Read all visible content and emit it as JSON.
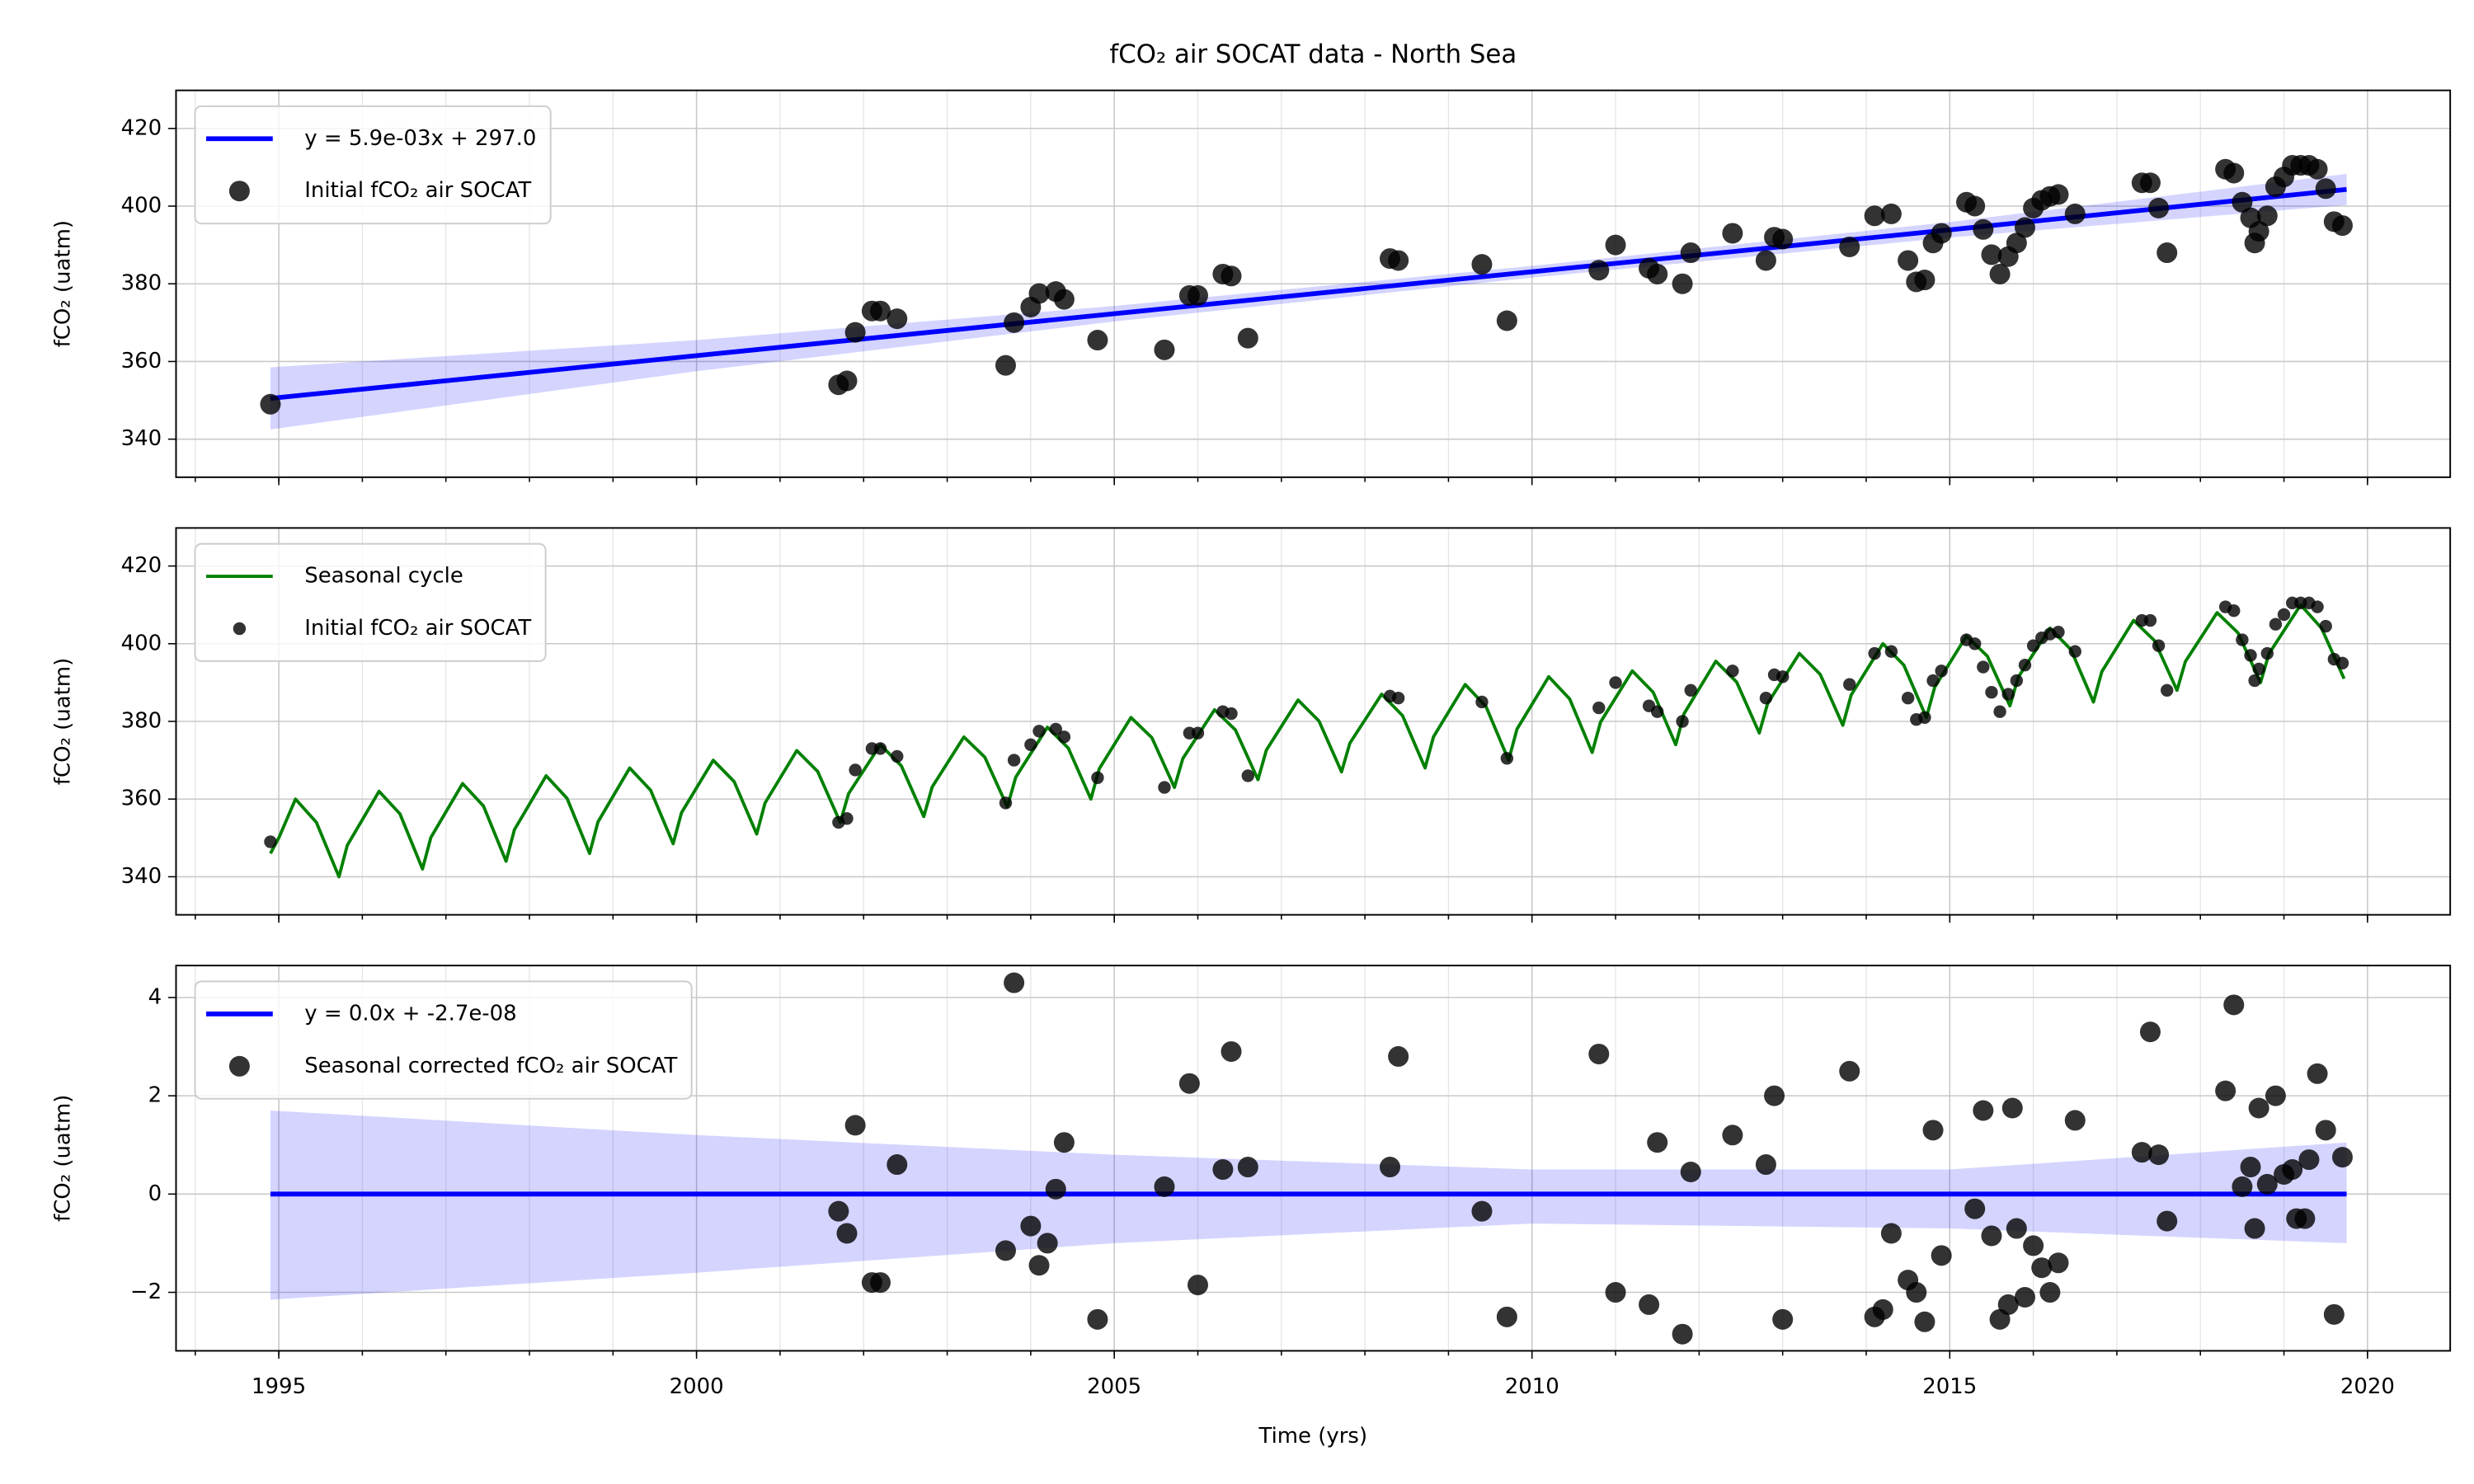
{
  "chart_data": [
    {
      "type": "scatter",
      "title": "fCO₂ air SOCAT data - North Sea",
      "ylabel": "fCO₂ (uatm)",
      "xlim": [
        1993.77,
        2020.99
      ],
      "ylim": [
        330.2,
        429.8
      ],
      "xticks": [
        1995,
        2000,
        2005,
        2010,
        2015,
        2020
      ],
      "xtick_labels": false,
      "xminor": [
        1994,
        1995,
        1996,
        1997,
        1998,
        1999,
        2000,
        2001,
        2002,
        2003,
        2004,
        2005,
        2006,
        2007,
        2008,
        2009,
        2010,
        2011,
        2012,
        2013,
        2014,
        2015,
        2016,
        2017,
        2018,
        2019,
        2020
      ],
      "yticks": [
        340,
        360,
        380,
        400,
        420
      ],
      "grid": true,
      "legend": "upper left",
      "series": [
        {
          "name": "y = 5.9e-03x + 297.0",
          "kind": "line",
          "color": "#0000ff",
          "width": 3,
          "x": [
            1994.9,
            2000,
            2005,
            2010,
            2015,
            2019.75
          ],
          "values": [
            350.5,
            361.5,
            372.3,
            383.1,
            393.9,
            404.3
          ],
          "band_lower": [
            342.5,
            357.5,
            370.3,
            381.6,
            391.9,
            400.3
          ],
          "band_upper": [
            358.5,
            365.5,
            374.3,
            384.6,
            395.9,
            408.3
          ],
          "band_color": "#0000ff"
        },
        {
          "name": "Initial fCO₂ air SOCAT",
          "kind": "scatter",
          "color": "#000000",
          "marker_size": 6.5,
          "x": [
            1994.9,
            2001.7,
            2001.8,
            2001.9,
            2002.1,
            2002.2,
            2002.4,
            2003.7,
            2003.8,
            2004.0,
            2004.1,
            2004.3,
            2004.4,
            2004.8,
            2005.6,
            2005.9,
            2006.0,
            2006.3,
            2006.4,
            2006.6,
            2008.3,
            2008.4,
            2009.4,
            2009.7,
            2010.8,
            2011.0,
            2011.4,
            2011.5,
            2011.8,
            2011.9,
            2012.4,
            2012.8,
            2012.9,
            2013.0,
            2013.8,
            2014.1,
            2014.3,
            2014.5,
            2014.6,
            2014.7,
            2014.8,
            2014.9,
            2015.2,
            2015.3,
            2015.4,
            2015.5,
            2015.6,
            2015.7,
            2015.8,
            2015.9,
            2016.0,
            2016.1,
            2016.2,
            2016.3,
            2016.5,
            2017.3,
            2017.4,
            2017.5,
            2017.6,
            2018.3,
            2018.4,
            2018.5,
            2018.6,
            2018.65,
            2018.7,
            2018.8,
            2018.9,
            2019.0,
            2019.1,
            2019.2,
            2019.3,
            2019.4,
            2019.5,
            2019.6,
            2019.7
          ],
          "values": [
            349,
            354,
            355,
            367.5,
            373,
            373,
            371,
            359,
            370,
            374,
            377.5,
            378,
            376,
            365.5,
            363,
            377,
            377,
            382.5,
            382,
            366,
            386.5,
            386,
            385,
            370.5,
            383.5,
            390,
            384,
            382.5,
            380,
            388,
            393,
            386,
            392,
            391.5,
            389.5,
            397.5,
            398,
            386,
            380.5,
            381,
            390.5,
            393,
            401,
            400,
            394,
            387.5,
            382.5,
            387,
            390.5,
            394.5,
            399.5,
            401.5,
            402.5,
            403,
            398,
            406,
            406,
            399.5,
            388,
            409.5,
            408.5,
            401,
            397,
            390.5,
            393.5,
            397.5,
            405,
            407.5,
            410.5,
            410.5,
            410.5,
            409.5,
            404.5,
            396,
            395
          ]
        }
      ]
    },
    {
      "type": "scatter",
      "ylabel": "fCO₂ (uatm)",
      "xlim": [
        1993.77,
        2020.99
      ],
      "ylim": [
        330.2,
        429.8
      ],
      "xticks": [
        1995,
        2000,
        2005,
        2010,
        2015,
        2020
      ],
      "xtick_labels": false,
      "xminor": [
        1994,
        1995,
        1996,
        1997,
        1998,
        1999,
        2000,
        2001,
        2002,
        2003,
        2004,
        2005,
        2006,
        2007,
        2008,
        2009,
        2010,
        2011,
        2012,
        2013,
        2014,
        2015,
        2016,
        2017,
        2018,
        2019,
        2020
      ],
      "yticks": [
        340,
        360,
        380,
        400,
        420
      ],
      "grid": true,
      "legend": "upper left",
      "series": [
        {
          "name": "Seasonal cycle",
          "kind": "line",
          "color": "#008000",
          "width": 2,
          "x": [
            1994.9,
            1995.0,
            1995.2,
            1995.45,
            1995.72,
            1995.82,
            1996.2,
            1996.45,
            1996.72,
            1996.82,
            1997.2,
            1997.45,
            1997.72,
            1997.82,
            1998.2,
            1998.45,
            1998.72,
            1998.82,
            1999.2,
            1999.45,
            1999.72,
            1999.82,
            2000.2,
            2000.45,
            2000.72,
            2000.82,
            2001.2,
            2001.45,
            2001.72,
            2001.82,
            2002.2,
            2002.45,
            2002.72,
            2002.82,
            2003.2,
            2003.45,
            2003.72,
            2003.82,
            2004.2,
            2004.45,
            2004.72,
            2004.82,
            2005.2,
            2005.45,
            2005.72,
            2005.82,
            2006.2,
            2006.45,
            2006.72,
            2006.82,
            2007.2,
            2007.45,
            2007.72,
            2007.82,
            2008.2,
            2008.45,
            2008.72,
            2008.82,
            2009.2,
            2009.45,
            2009.72,
            2009.82,
            2010.2,
            2010.45,
            2010.72,
            2010.82,
            2011.2,
            2011.45,
            2011.72,
            2011.82,
            2012.2,
            2012.45,
            2012.72,
            2012.82,
            2013.2,
            2013.45,
            2013.72,
            2013.82,
            2014.2,
            2014.45,
            2014.72,
            2014.82,
            2015.2,
            2015.45,
            2015.72,
            2015.82,
            2016.2,
            2016.45,
            2016.72,
            2016.82,
            2017.2,
            2017.45,
            2017.72,
            2017.82,
            2018.2,
            2018.45,
            2018.72,
            2018.82,
            2019.2,
            2019.45,
            2019.72
          ],
          "values": [
            346,
            350,
            360,
            354,
            340,
            348.1,
            362,
            356.2,
            342,
            350.1,
            364,
            358.2,
            344,
            352.1,
            366,
            360.2,
            346,
            354.1,
            368,
            362.3,
            348.5,
            356.5,
            370,
            364.5,
            351,
            359,
            372.5,
            367.1,
            354,
            361.4,
            374,
            368.6,
            355.5,
            363.1,
            376,
            370.8,
            358,
            365.6,
            378.5,
            373.1,
            360,
            367.8,
            381,
            375.8,
            363,
            370.4,
            383,
            377.8,
            365,
            372.6,
            385.5,
            380.1,
            367,
            374.4,
            387,
            381.5,
            368,
            376,
            389.5,
            383.8,
            370,
            378,
            391.5,
            385.8,
            372,
            379.8,
            393,
            387.5,
            374,
            382,
            395.5,
            390.1,
            377,
            384.6,
            397.5,
            392.1,
            379,
            386.8,
            400,
            394.5,
            381,
            388.8,
            402,
            396.8,
            384,
            391.4,
            404,
            398.5,
            385,
            392.8,
            406,
            400.8,
            388,
            395.4,
            408,
            402.8,
            390,
            397.4,
            410,
            404,
            391
          ]
        },
        {
          "name": "Initial fCO₂ air SOCAT",
          "kind": "scatter",
          "color": "#000000",
          "marker_size": 4,
          "x": [
            1994.9,
            2001.7,
            2001.8,
            2001.9,
            2002.1,
            2002.2,
            2002.4,
            2003.7,
            2003.8,
            2004.0,
            2004.1,
            2004.3,
            2004.4,
            2004.8,
            2005.6,
            2005.9,
            2006.0,
            2006.3,
            2006.4,
            2006.6,
            2008.3,
            2008.4,
            2009.4,
            2009.7,
            2010.8,
            2011.0,
            2011.4,
            2011.5,
            2011.8,
            2011.9,
            2012.4,
            2012.8,
            2012.9,
            2013.0,
            2013.8,
            2014.1,
            2014.3,
            2014.5,
            2014.6,
            2014.7,
            2014.8,
            2014.9,
            2015.2,
            2015.3,
            2015.4,
            2015.5,
            2015.6,
            2015.7,
            2015.8,
            2015.9,
            2016.0,
            2016.1,
            2016.2,
            2016.3,
            2016.5,
            2017.3,
            2017.4,
            2017.5,
            2017.6,
            2018.3,
            2018.4,
            2018.5,
            2018.6,
            2018.65,
            2018.7,
            2018.8,
            2018.9,
            2019.0,
            2019.1,
            2019.2,
            2019.3,
            2019.4,
            2019.5,
            2019.6,
            2019.7
          ],
          "values": [
            349,
            354,
            355,
            367.5,
            373,
            373,
            371,
            359,
            370,
            374,
            377.5,
            378,
            376,
            365.5,
            363,
            377,
            377,
            382.5,
            382,
            366,
            386.5,
            386,
            385,
            370.5,
            383.5,
            390,
            384,
            382.5,
            380,
            388,
            393,
            386,
            392,
            391.5,
            389.5,
            397.5,
            398,
            386,
            380.5,
            381,
            390.5,
            393,
            401,
            400,
            394,
            387.5,
            382.5,
            387,
            390.5,
            394.5,
            399.5,
            401.5,
            402.5,
            403,
            398,
            406,
            406,
            399.5,
            388,
            409.5,
            408.5,
            401,
            397,
            390.5,
            393.5,
            397.5,
            405,
            407.5,
            410.5,
            410.5,
            410.5,
            409.5,
            404.5,
            396,
            395
          ]
        }
      ]
    },
    {
      "type": "scatter",
      "ylabel": "fCO₂ (uatm)",
      "xlabel": "Time (yrs)",
      "xlim": [
        1993.77,
        2020.99
      ],
      "ylim": [
        -3.19,
        4.65
      ],
      "xticks": [
        1995,
        2000,
        2005,
        2010,
        2015,
        2020
      ],
      "xtick_labels": true,
      "xminor": [
        1994,
        1995,
        1996,
        1997,
        1998,
        1999,
        2000,
        2001,
        2002,
        2003,
        2004,
        2005,
        2006,
        2007,
        2008,
        2009,
        2010,
        2011,
        2012,
        2013,
        2014,
        2015,
        2016,
        2017,
        2018,
        2019,
        2020
      ],
      "yticks": [
        {
          "value": -2,
          "label": "−2"
        },
        0,
        2,
        4
      ],
      "grid": true,
      "legend": "upper left",
      "series": [
        {
          "name": "y = 0.0x + -2.7e-08",
          "kind": "line",
          "color": "#0000ff",
          "width": 3,
          "x": [
            1994.9,
            2000,
            2005,
            2010,
            2015,
            2019.75
          ],
          "values": [
            0,
            0,
            0,
            0,
            0,
            0
          ],
          "band_lower": [
            -2.15,
            -1.6,
            -1.0,
            -0.6,
            -0.7,
            -1.0
          ],
          "band_upper": [
            1.7,
            1.2,
            0.8,
            0.5,
            0.5,
            1.05
          ],
          "band_color": "#0000ff"
        },
        {
          "name": "Seasonal corrected fCO₂ air SOCAT",
          "kind": "scatter",
          "color": "#000000",
          "marker_size": 6.5,
          "x": [
            2001.7,
            2001.8,
            2001.9,
            2002.1,
            2002.2,
            2002.4,
            2003.7,
            2003.8,
            2004.0,
            2004.1,
            2004.2,
            2004.3,
            2004.4,
            2004.8,
            2005.6,
            2005.9,
            2006.0,
            2006.3,
            2006.4,
            2006.6,
            2008.3,
            2008.4,
            2009.4,
            2009.7,
            2010.8,
            2011.0,
            2011.4,
            2011.5,
            2011.8,
            2011.9,
            2012.4,
            2012.8,
            2012.9,
            2013.0,
            2013.8,
            2014.1,
            2014.2,
            2014.3,
            2014.5,
            2014.6,
            2014.7,
            2014.8,
            2014.9,
            2015.3,
            2015.4,
            2015.5,
            2015.6,
            2015.7,
            2015.75,
            2015.8,
            2015.9,
            2016.0,
            2016.1,
            2016.2,
            2016.3,
            2016.5,
            2017.3,
            2017.4,
            2017.5,
            2017.6,
            2018.3,
            2018.4,
            2018.5,
            2018.6,
            2018.65,
            2018.7,
            2018.8,
            2018.9,
            2019.0,
            2019.1,
            2019.15,
            2019.25,
            2019.3,
            2019.4,
            2019.5,
            2019.6,
            2019.7
          ],
          "values": [
            -0.35,
            -0.8,
            1.4,
            -1.8,
            -1.8,
            0.6,
            -1.15,
            4.3,
            -0.65,
            -1.45,
            -1.0,
            0.1,
            1.05,
            -2.55,
            0.15,
            2.25,
            -1.85,
            0.5,
            2.9,
            0.55,
            0.55,
            2.8,
            -0.35,
            -2.5,
            2.85,
            -2.0,
            -2.25,
            1.05,
            -2.85,
            0.45,
            1.2,
            0.6,
            2.0,
            -2.55,
            2.5,
            -2.5,
            -2.35,
            -0.8,
            -1.75,
            -2.0,
            -2.6,
            1.3,
            -1.25,
            -0.3,
            1.7,
            -0.85,
            -2.55,
            -2.25,
            1.75,
            -0.7,
            -2.1,
            -1.05,
            -1.5,
            -2.0,
            -1.4,
            1.5,
            0.85,
            3.3,
            0.8,
            -0.55,
            2.1,
            3.85,
            0.15,
            0.55,
            -0.7,
            1.75,
            0.2,
            2.0,
            0.4,
            0.5,
            -0.5,
            -0.5,
            0.7,
            2.45,
            1.3,
            -2.45,
            0.75
          ]
        }
      ]
    }
  ]
}
